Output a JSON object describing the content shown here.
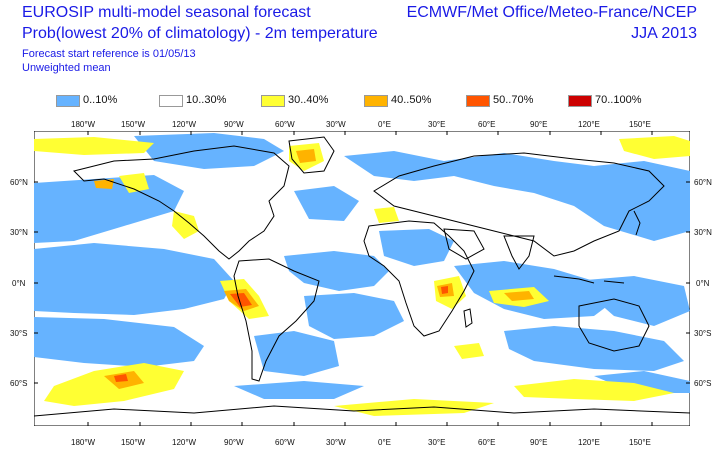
{
  "header": {
    "title": "EUROSIP multi-model seasonal forecast",
    "subtitle": "Prob(lowest 20% of climatology) - 2m temperature",
    "reference": "Forecast start reference is 01/05/13",
    "mean_type": "Unweighted mean",
    "centres": "ECMWF/Met Office/Meteo-France/NCEP",
    "season": "JJA 2013"
  },
  "legend": [
    {
      "label": "0..10%",
      "color": "#66b3ff"
    },
    {
      "label": "10..30%",
      "color": "#ffffff"
    },
    {
      "label": "30..40%",
      "color": "#ffff33"
    },
    {
      "label": "40..50%",
      "color": "#ffb300"
    },
    {
      "label": "50..70%",
      "color": "#ff5500"
    },
    {
      "label": "70..100%",
      "color": "#cc0000"
    }
  ],
  "axes": {
    "lon_labels": [
      "180°W",
      "150°W",
      "120°W",
      "90°W",
      "60°W",
      "30°W",
      "0°E",
      "30°E",
      "60°E",
      "90°E",
      "120°E",
      "150°E"
    ],
    "lat_labels": [
      "60°N",
      "30°N",
      "0°N",
      "30°S",
      "60°S"
    ]
  }
}
